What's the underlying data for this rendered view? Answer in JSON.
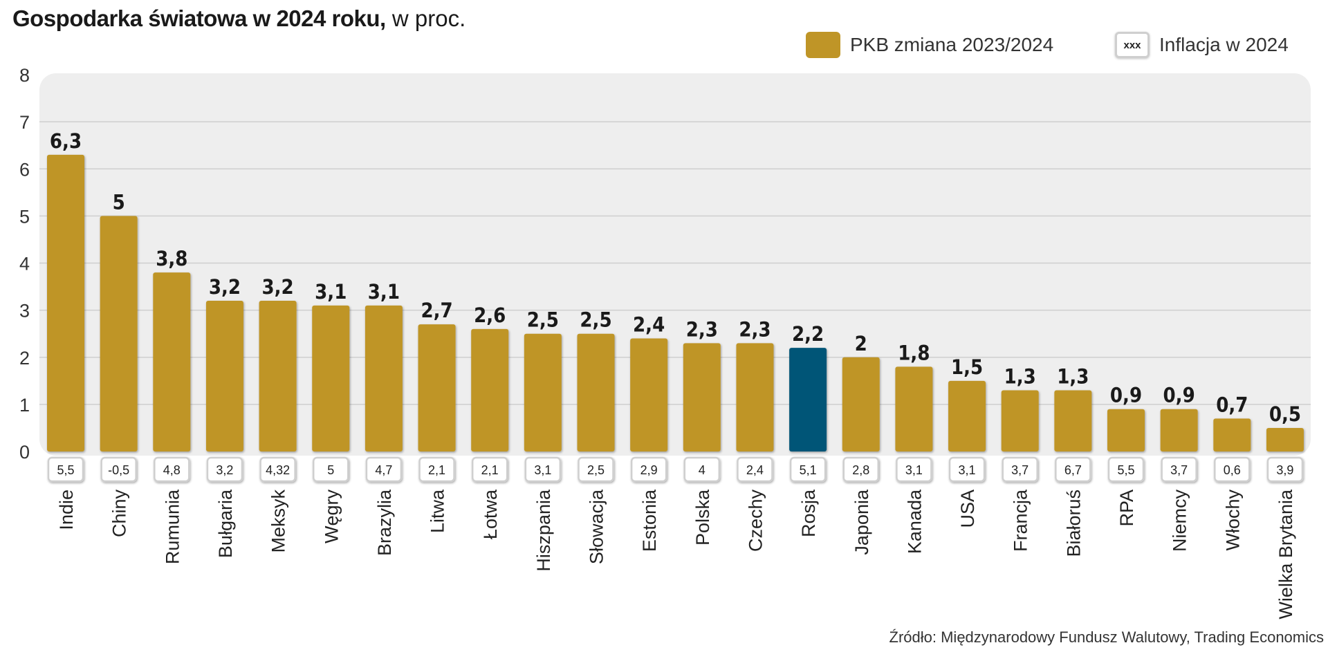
{
  "title": {
    "bold": "Gospodarka światowa w 2024 roku,",
    "normal": " w proc."
  },
  "legend": {
    "gdp_label": "PKB zmiana 2023/2024",
    "inflation_label": "Inflacja  w 2024",
    "inflation_marker": "xxx"
  },
  "source": "Źródło: Międzynarodowy Fundusz Walutowy, Trading Economics",
  "colors": {
    "bar": "#bf9527",
    "highlight": "#005477",
    "plot_bg": "#eeeeee"
  },
  "chart_data": {
    "type": "bar",
    "title": "Gospodarka światowa w 2024 roku, w proc.",
    "ylim": [
      0,
      8
    ],
    "yticks": [
      "0",
      "1",
      "2",
      "3",
      "4",
      "5",
      "6",
      "7",
      "8"
    ],
    "grid": true,
    "legend_position": "top-right",
    "highlight_category": "Rosja",
    "categories": [
      "Indie",
      "Chiny",
      "Rumunia",
      "Bułgaria",
      "Meksyk",
      "Węgry",
      "Brazylia",
      "Litwa",
      "Łotwa",
      "Hiszpania",
      "Słowacja",
      "Estonia",
      "Polska",
      "Czechy",
      "Rosja",
      "Japonia",
      "Kanada",
      "USA",
      "Francja",
      "Białoruś",
      "RPA",
      "Niemcy",
      "Włochy",
      "Wielka Brytania"
    ],
    "series": [
      {
        "name": "PKB zmiana 2023/2024",
        "values": [
          6.3,
          5,
          3.8,
          3.2,
          3.2,
          3.1,
          3.1,
          2.7,
          2.6,
          2.5,
          2.5,
          2.4,
          2.3,
          2.3,
          2.2,
          2,
          1.8,
          1.5,
          1.3,
          1.3,
          0.9,
          0.9,
          0.7,
          0.5
        ],
        "labels": [
          "6,3",
          "5",
          "3,8",
          "3,2",
          "3,2",
          "3,1",
          "3,1",
          "2,7",
          "2,6",
          "2,5",
          "2,5",
          "2,4",
          "2,3",
          "2,3",
          "2,2",
          "2",
          "1,8",
          "1,5",
          "1,3",
          "1,3",
          "0,9",
          "0,9",
          "0,7",
          "0,5"
        ]
      },
      {
        "name": "Inflacja w 2024",
        "values": [
          5.5,
          -0.5,
          4.8,
          3.2,
          4.32,
          5,
          4.7,
          2.1,
          2.1,
          3.1,
          2.5,
          2.9,
          4,
          2.4,
          5.1,
          2.8,
          3.1,
          3.1,
          3.7,
          6.7,
          5.5,
          3.7,
          0.6,
          3.9
        ],
        "labels": [
          "5,5",
          "-0,5",
          "4,8",
          "3,2",
          "4,32",
          "5",
          "4,7",
          "2,1",
          "2,1",
          "3,1",
          "2,5",
          "2,9",
          "4",
          "2,4",
          "5,1",
          "2,8",
          "3,1",
          "3,1",
          "3,7",
          "6,7",
          "5,5",
          "3,7",
          "0,6",
          "3,9"
        ]
      }
    ]
  }
}
